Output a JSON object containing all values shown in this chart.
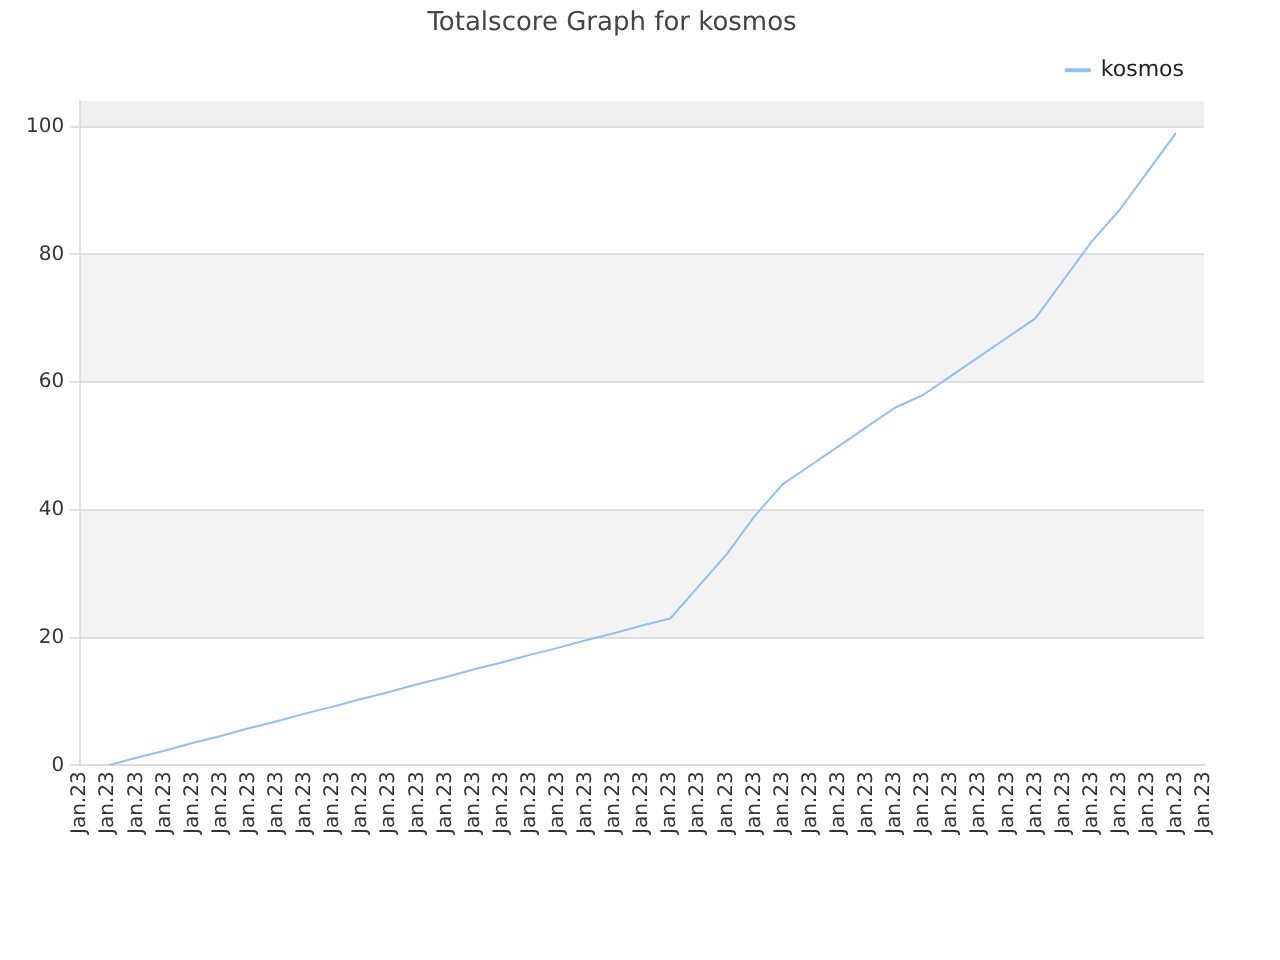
{
  "chart_data": {
    "type": "line",
    "title": "Totalscore Graph for kosmos",
    "categories": [
      "Jan.23",
      "Jan.23",
      "Jan.23",
      "Jan.23",
      "Jan.23",
      "Jan.23",
      "Jan.23",
      "Jan.23",
      "Jan.23",
      "Jan.23",
      "Jan.23",
      "Jan.23",
      "Jan.23",
      "Jan.23",
      "Jan.23",
      "Jan.23",
      "Jan.23",
      "Jan.23",
      "Jan.23",
      "Jan.23",
      "Jan.23",
      "Jan.23",
      "Jan.23",
      "Jan.23",
      "Jan.23",
      "Jan.23",
      "Jan.23",
      "Jan.23",
      "Jan.23",
      "Jan.23",
      "Jan.23",
      "Jan.23",
      "Jan.23",
      "Jan.23",
      "Jan.23",
      "Jan.23",
      "Jan.23",
      "Jan.23",
      "Jan.23",
      "Jan.23",
      "Jan.23"
    ],
    "series": [
      {
        "name": "kosmos",
        "color": "#90c0f0",
        "values": [
          null,
          0,
          1.2,
          2.3,
          3.5,
          4.6,
          5.8,
          6.9,
          8.1,
          9.2,
          10.4,
          11.5,
          12.7,
          13.8,
          15,
          16.1,
          17.3,
          18.4,
          19.6,
          20.7,
          21.9,
          23,
          28,
          33,
          39,
          44,
          47,
          50,
          53,
          56,
          58,
          61,
          64,
          67,
          70,
          76,
          82,
          87,
          93,
          99,
          null
        ]
      }
    ],
    "ylim": [
      0,
      104
    ],
    "yticks": [
      0,
      20,
      40,
      60,
      80,
      100
    ],
    "grid": "y",
    "bands": [
      {
        "axis": "y",
        "from": 20,
        "to": 40,
        "color": "#f3f3f3"
      },
      {
        "axis": "y",
        "from": 60,
        "to": 80,
        "color": "#f3f3f3"
      },
      {
        "axis": "y",
        "from": 100,
        "to": 104,
        "color": "#eeeeee"
      }
    ],
    "legend": "top right",
    "marker": "none",
    "line_style": "solid"
  }
}
